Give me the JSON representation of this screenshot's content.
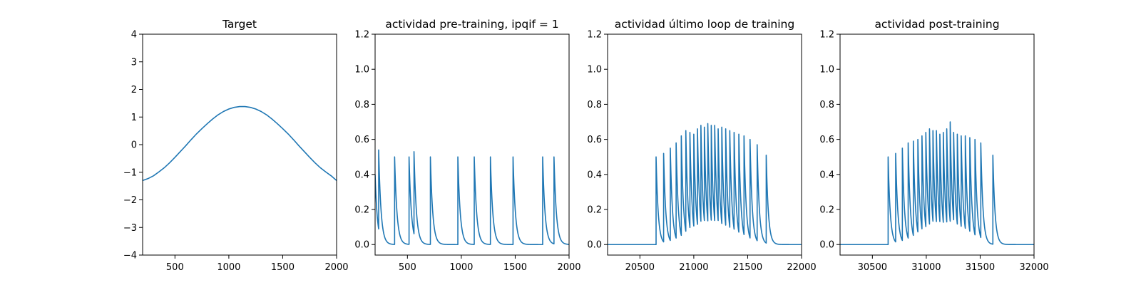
{
  "figure": {
    "background": "#ffffff"
  },
  "chart_data": [
    {
      "type": "line",
      "title": "Target",
      "xlabel": "",
      "ylabel": "",
      "xlim": [
        200,
        2000
      ],
      "ylim": [
        -4,
        4
      ],
      "x_ticks": [
        500,
        1000,
        1500,
        2000
      ],
      "x_tick_labels": [
        "500",
        "1000",
        "1500",
        "2000"
      ],
      "y_ticks": [
        -4,
        -3,
        -2,
        -1,
        0,
        1,
        2,
        3,
        4
      ],
      "y_tick_labels": [
        "−4",
        "−3",
        "−2",
        "−1",
        "0",
        "1",
        "2",
        "3",
        "4"
      ],
      "grid": false,
      "legend": "none",
      "series": [
        {
          "color": "#1f77b4",
          "x": [
            200,
            250,
            300,
            350,
            400,
            450,
            500,
            550,
            600,
            650,
            700,
            750,
            800,
            850,
            900,
            950,
            1000,
            1050,
            1100,
            1125,
            1150,
            1200,
            1250,
            1300,
            1350,
            1400,
            1450,
            1500,
            1550,
            1600,
            1650,
            1700,
            1750,
            1800,
            1850,
            1900,
            1950,
            2000
          ],
          "y": [
            -1.3,
            -1.23,
            -1.13,
            -0.99,
            -0.84,
            -0.66,
            -0.46,
            -0.25,
            -0.04,
            0.18,
            0.39,
            0.58,
            0.76,
            0.93,
            1.08,
            1.2,
            1.29,
            1.35,
            1.38,
            1.38,
            1.38,
            1.35,
            1.29,
            1.2,
            1.08,
            0.93,
            0.76,
            0.58,
            0.39,
            0.18,
            -0.04,
            -0.25,
            -0.46,
            -0.66,
            -0.84,
            -0.99,
            -1.13,
            -1.3
          ]
        }
      ]
    },
    {
      "type": "line",
      "title": "actividad pre-training, ipqif = 1",
      "xlabel": "",
      "ylabel": "",
      "xlim": [
        200,
        2000
      ],
      "ylim": [
        -0.06,
        1.2
      ],
      "x_ticks": [
        500,
        1000,
        1500,
        2000
      ],
      "x_tick_labels": [
        "500",
        "1000",
        "1500",
        "2000"
      ],
      "y_ticks": [
        0.0,
        0.2,
        0.4,
        0.6,
        0.8,
        1.0,
        1.2
      ],
      "y_tick_labels": [
        "0.0",
        "0.2",
        "0.4",
        "0.6",
        "0.8",
        "1.0",
        "1.2"
      ],
      "grid": false,
      "legend": "none",
      "series": [
        {
          "color": "#1f77b4",
          "baseline": 0.0,
          "start_value": 0.4,
          "decay_tau": 22,
          "spikes": [
            {
              "x": 233,
              "peak": 0.54
            },
            {
              "x": 381,
              "peak": 0.5
            },
            {
              "x": 515,
              "peak": 0.5
            },
            {
              "x": 561,
              "peak": 0.53
            },
            {
              "x": 713,
              "peak": 0.5
            },
            {
              "x": 968,
              "peak": 0.5
            },
            {
              "x": 1120,
              "peak": 0.5
            },
            {
              "x": 1270,
              "peak": 0.5
            },
            {
              "x": 1480,
              "peak": 0.5
            },
            {
              "x": 1755,
              "peak": 0.5
            },
            {
              "x": 1860,
              "peak": 0.5
            }
          ]
        }
      ]
    },
    {
      "type": "line",
      "title": "actividad último loop de training",
      "xlabel": "",
      "ylabel": "",
      "xlim": [
        20200,
        22000
      ],
      "ylim": [
        -0.06,
        1.2
      ],
      "x_ticks": [
        20500,
        21000,
        21500,
        22000
      ],
      "x_tick_labels": [
        "20500",
        "21000",
        "21500",
        "22000"
      ],
      "y_ticks": [
        0.0,
        0.2,
        0.4,
        0.6,
        0.8,
        1.0,
        1.2
      ],
      "y_tick_labels": [
        "0.0",
        "0.2",
        "0.4",
        "0.6",
        "0.8",
        "1.0",
        "1.2"
      ],
      "grid": false,
      "legend": "none",
      "series": [
        {
          "color": "#1f77b4",
          "baseline": 0.0,
          "start_value": 0.0,
          "decay_tau": 20,
          "spikes": [
            {
              "x": 20650,
              "peak": 0.5
            },
            {
              "x": 20720,
              "peak": 0.52
            },
            {
              "x": 20782,
              "peak": 0.55
            },
            {
              "x": 20836,
              "peak": 0.58
            },
            {
              "x": 20884,
              "peak": 0.62
            },
            {
              "x": 20926,
              "peak": 0.65
            },
            {
              "x": 20964,
              "peak": 0.64
            },
            {
              "x": 21000,
              "peak": 0.63
            },
            {
              "x": 21034,
              "peak": 0.66
            },
            {
              "x": 21066,
              "peak": 0.68
            },
            {
              "x": 21098,
              "peak": 0.67
            },
            {
              "x": 21130,
              "peak": 0.69
            },
            {
              "x": 21162,
              "peak": 0.68
            },
            {
              "x": 21194,
              "peak": 0.68
            },
            {
              "x": 21226,
              "peak": 0.66
            },
            {
              "x": 21260,
              "peak": 0.67
            },
            {
              "x": 21296,
              "peak": 0.66
            },
            {
              "x": 21334,
              "peak": 0.65
            },
            {
              "x": 21374,
              "peak": 0.64
            },
            {
              "x": 21418,
              "peak": 0.63
            },
            {
              "x": 21466,
              "peak": 0.62
            },
            {
              "x": 21522,
              "peak": 0.6
            },
            {
              "x": 21588,
              "peak": 0.57
            },
            {
              "x": 21672,
              "peak": 0.51
            }
          ]
        }
      ]
    },
    {
      "type": "line",
      "title": "actividad post-training",
      "xlabel": "",
      "ylabel": "",
      "xlim": [
        30200,
        32000
      ],
      "ylim": [
        -0.06,
        1.2
      ],
      "x_ticks": [
        30500,
        31000,
        31500,
        32000
      ],
      "x_tick_labels": [
        "30500",
        "31000",
        "31500",
        "32000"
      ],
      "y_ticks": [
        0.0,
        0.2,
        0.4,
        0.6,
        0.8,
        1.0,
        1.2
      ],
      "y_tick_labels": [
        "0.0",
        "0.2",
        "0.4",
        "0.6",
        "0.8",
        "1.0",
        "1.2"
      ],
      "grid": false,
      "legend": "none",
      "series": [
        {
          "color": "#1f77b4",
          "baseline": 0.0,
          "start_value": 0.0,
          "decay_tau": 20,
          "spikes": [
            {
              "x": 30646,
              "peak": 0.5
            },
            {
              "x": 30716,
              "peak": 0.52
            },
            {
              "x": 30778,
              "peak": 0.55
            },
            {
              "x": 30832,
              "peak": 0.58
            },
            {
              "x": 30880,
              "peak": 0.59
            },
            {
              "x": 30922,
              "peak": 0.6
            },
            {
              "x": 30960,
              "peak": 0.62
            },
            {
              "x": 30996,
              "peak": 0.64
            },
            {
              "x": 31030,
              "peak": 0.66
            },
            {
              "x": 31062,
              "peak": 0.65
            },
            {
              "x": 31094,
              "peak": 0.65
            },
            {
              "x": 31126,
              "peak": 0.63
            },
            {
              "x": 31158,
              "peak": 0.64
            },
            {
              "x": 31190,
              "peak": 0.66
            },
            {
              "x": 31222,
              "peak": 0.7
            },
            {
              "x": 31254,
              "peak": 0.64
            },
            {
              "x": 31288,
              "peak": 0.63
            },
            {
              "x": 31324,
              "peak": 0.62
            },
            {
              "x": 31362,
              "peak": 0.62
            },
            {
              "x": 31404,
              "peak": 0.61
            },
            {
              "x": 31452,
              "peak": 0.6
            },
            {
              "x": 31506,
              "peak": 0.58
            },
            {
              "x": 31618,
              "peak": 0.51
            }
          ]
        }
      ]
    }
  ]
}
